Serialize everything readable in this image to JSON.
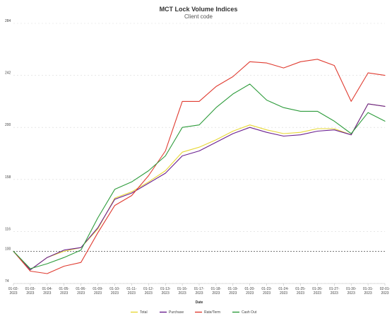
{
  "chart_data": {
    "type": "line",
    "title": "MCT Lock Volume Indices",
    "subtitle": "Client code",
    "xlabel": "Date",
    "ylabel": "",
    "ylim": [
      74,
      284
    ],
    "y_ticks": [
      74,
      100,
      116,
      158,
      200,
      242,
      284
    ],
    "reference_line": 100,
    "grid": "horizontal dashed",
    "legend_position": "bottom",
    "categories": [
      "01-02-2023",
      "01-03-2023",
      "01-04-2023",
      "01-05-2023",
      "01-06-2023",
      "01-09-2023",
      "01-10-2023",
      "01-11-2023",
      "01-12-2023",
      "01-13-2023",
      "01-16-2023",
      "01-17-2023",
      "01-18-2023",
      "01-19-2023",
      "01-20-2023",
      "01-23-2023",
      "01-24-2023",
      "01-25-2023",
      "01-26-2023",
      "01-27-2023",
      "01-30-2023",
      "01-31-2023",
      "02-01-2023"
    ],
    "category_labels": [
      [
        "01-02-",
        "2023"
      ],
      [
        "01-03-",
        "2023"
      ],
      [
        "01-04-",
        "2023"
      ],
      [
        "01-05-",
        "2023"
      ],
      [
        "01-06-",
        "2023"
      ],
      [
        "01-09-",
        "2023"
      ],
      [
        "01-10-",
        "2023"
      ],
      [
        "01-11-",
        "2023"
      ],
      [
        "01-12-",
        "2023"
      ],
      [
        "01-13-",
        "2023"
      ],
      [
        "01-16-",
        "2023"
      ],
      [
        "01-17-",
        "2023"
      ],
      [
        "01-18-",
        "2023"
      ],
      [
        "01-19-",
        "2023"
      ],
      [
        "01-20-",
        "2023"
      ],
      [
        "01-23-",
        "2023"
      ],
      [
        "01-24-",
        "2023"
      ],
      [
        "01-25-",
        "2023"
      ],
      [
        "01-26-",
        "2023"
      ],
      [
        "01-27-",
        "2023"
      ],
      [
        "01-30-",
        "2023"
      ],
      [
        "01-31-",
        "2023"
      ],
      [
        "02-01-",
        "2023"
      ]
    ],
    "series": [
      {
        "name": "Total",
        "color": "#e8d837",
        "values": [
          100,
          85,
          95,
          100,
          103,
          118,
          143,
          148,
          156,
          165,
          180,
          184,
          190,
          197,
          202,
          198,
          195,
          196,
          199,
          199,
          194,
          219,
          217
        ]
      },
      {
        "name": "Purchase",
        "color": "#6a1f8f",
        "values": [
          100,
          85,
          95,
          101,
          103,
          119,
          142,
          147,
          155,
          163,
          177,
          181,
          188,
          195,
          200,
          196,
          193,
          194,
          197,
          198,
          194,
          219,
          217
        ]
      },
      {
        "name": "Rate/Term",
        "color": "#e03c31",
        "values": [
          100,
          84,
          82,
          88,
          91,
          115,
          137,
          145,
          161,
          181,
          221,
          221,
          233,
          241,
          253,
          252,
          248,
          253,
          255,
          250,
          221,
          244,
          242
        ]
      },
      {
        "name": "Cash Out",
        "color": "#2e9c3c",
        "values": [
          100,
          86,
          90,
          95,
          101,
          127,
          150,
          156,
          165,
          177,
          200,
          202,
          216,
          227,
          235,
          222,
          216,
          213,
          213,
          205,
          195,
          212,
          205
        ]
      }
    ]
  }
}
